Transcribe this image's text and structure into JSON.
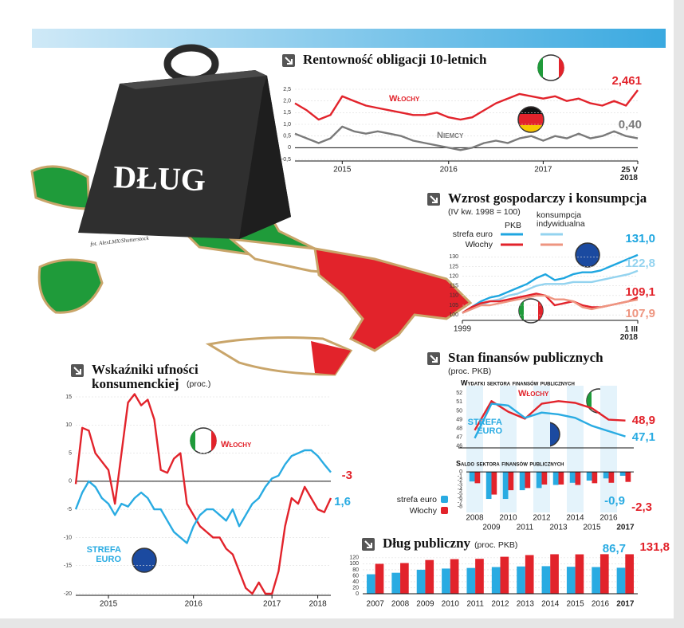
{
  "illustration": {
    "label": "DŁUG",
    "credit": "fot. AlexLMX/Shutterstock"
  },
  "chart_data": [
    {
      "type": "line",
      "title": "Rentowność obligacji 10-letnich",
      "grid": true,
      "categories": [
        null,
        null,
        null,
        null,
        "2015",
        null,
        null,
        null,
        null,
        null,
        null,
        null,
        null,
        "2016",
        null,
        null,
        null,
        null,
        null,
        null,
        null,
        "2017",
        null,
        null,
        null,
        null,
        null,
        null,
        null,
        "25 V 2018"
      ],
      "ylim": [
        -0.5,
        2.5
      ],
      "yticks": [
        {
          "value": 2.5,
          "label": "2,5"
        },
        {
          "value": 2.0,
          "label": "2,0"
        },
        {
          "value": 1.5,
          "label": "1,5"
        },
        {
          "value": 1.0,
          "label": "1,0"
        },
        {
          "value": 0.5,
          "label": "0,5"
        },
        0,
        {
          "value": -0.5,
          "label": "-0,5"
        }
      ],
      "series": [
        {
          "name": "Włochy",
          "color": "#e2232b",
          "values": [
            1.9,
            1.6,
            1.2,
            1.4,
            2.2,
            2.0,
            1.8,
            1.7,
            1.6,
            1.5,
            1.4,
            1.4,
            1.5,
            1.3,
            1.2,
            1.3,
            1.6,
            1.9,
            2.1,
            2.3,
            2.2,
            2.1,
            2.2,
            2.0,
            2.1,
            1.9,
            1.8,
            2.0,
            1.8,
            2.461
          ],
          "value_labels": [
            null,
            null,
            null,
            null,
            null,
            null,
            null,
            null,
            null,
            null,
            null,
            null,
            null,
            null,
            null,
            null,
            null,
            null,
            null,
            null,
            null,
            null,
            null,
            null,
            null,
            null,
            null,
            null,
            null,
            "2,461"
          ]
        },
        {
          "name": "Niemcy",
          "color": "#7a7a7a",
          "values": [
            0.6,
            0.4,
            0.2,
            0.4,
            0.9,
            0.7,
            0.6,
            0.7,
            0.6,
            0.5,
            0.3,
            0.2,
            0.1,
            0.0,
            -0.1,
            0.0,
            0.2,
            0.3,
            0.2,
            0.4,
            0.5,
            0.3,
            0.5,
            0.4,
            0.6,
            0.4,
            0.5,
            0.7,
            0.5,
            0.4
          ],
          "value_labels": [
            null,
            null,
            null,
            null,
            null,
            null,
            null,
            null,
            null,
            null,
            null,
            null,
            null,
            null,
            null,
            null,
            null,
            null,
            null,
            null,
            null,
            null,
            null,
            null,
            null,
            null,
            null,
            null,
            null,
            "0,40"
          ]
        }
      ]
    },
    {
      "type": "line",
      "title": "Wzrost gospodarczy i konsumpcja",
      "subtitle": "(IV kw. 1998 = 100)",
      "grid": true,
      "legend_rows": [
        "strefa euro",
        "Włochy"
      ],
      "legend_columns": [
        "PKB",
        "konsumpcja indywidualna"
      ],
      "categories": [
        "1999",
        null,
        null,
        null,
        null,
        null,
        null,
        null,
        null,
        null,
        null,
        null,
        null,
        null,
        null,
        null,
        null,
        null,
        null,
        "1 III 2018"
      ],
      "ylim": [
        98,
        133
      ],
      "yticks": [
        100,
        105,
        110,
        115,
        120,
        125,
        130
      ],
      "series": [
        {
          "color": "#1ea6e0",
          "values": [
            101,
            104,
            107,
            109,
            110,
            112,
            114,
            116,
            119,
            121,
            118,
            119,
            121,
            122,
            122,
            123,
            125,
            127,
            129,
            131.0
          ],
          "value_labels": [
            null,
            null,
            null,
            null,
            null,
            null,
            null,
            null,
            null,
            null,
            null,
            null,
            null,
            null,
            null,
            null,
            null,
            null,
            null,
            "131,0"
          ]
        },
        {
          "color": "#93d3ef",
          "values": [
            101,
            103,
            105,
            107,
            108,
            110,
            111,
            113,
            115,
            116,
            116,
            116,
            117,
            117,
            117,
            118,
            119,
            120,
            121,
            122.8
          ],
          "value_labels": [
            null,
            null,
            null,
            null,
            null,
            null,
            null,
            null,
            null,
            null,
            null,
            null,
            null,
            null,
            null,
            null,
            null,
            null,
            null,
            "122,8"
          ]
        },
        {
          "color": "#e2232b",
          "values": [
            101,
            104,
            106,
            107,
            107,
            108,
            109,
            110,
            111,
            110,
            105,
            106,
            107,
            105,
            104,
            104,
            105,
            106,
            107,
            109.1
          ],
          "value_labels": [
            null,
            null,
            null,
            null,
            null,
            null,
            null,
            null,
            null,
            null,
            null,
            null,
            null,
            null,
            null,
            null,
            null,
            null,
            null,
            "109,1"
          ]
        },
        {
          "color": "#ee9580",
          "values": [
            101,
            103,
            105,
            105,
            106,
            107,
            108,
            109,
            110,
            110,
            108,
            108,
            107,
            104,
            103,
            104,
            105,
            106,
            107,
            107.9
          ],
          "value_labels": [
            null,
            null,
            null,
            null,
            null,
            null,
            null,
            null,
            null,
            null,
            null,
            null,
            null,
            null,
            null,
            null,
            null,
            null,
            null,
            "107,9"
          ]
        }
      ]
    },
    {
      "type": "line",
      "title": "Wskaźniki ufności konsumenckiej",
      "subtitle": "(proc.)",
      "grid": true,
      "categories": [
        null,
        null,
        null,
        null,
        null,
        "2015",
        null,
        null,
        null,
        null,
        null,
        null,
        null,
        null,
        null,
        null,
        null,
        null,
        "2016",
        null,
        null,
        null,
        null,
        null,
        null,
        null,
        null,
        null,
        null,
        null,
        "2017",
        null,
        null,
        null,
        null,
        null,
        null,
        "2018",
        null,
        null
      ],
      "ylim": [
        -20,
        15
      ],
      "yticks": [
        15,
        10,
        5,
        0,
        -5,
        -10,
        -15,
        -20
      ],
      "series": [
        {
          "name": "Włochy",
          "color": "#e2232b",
          "values": [
            -0.5,
            9.5,
            9,
            5,
            3.5,
            2,
            -4,
            5,
            14,
            15.5,
            13.5,
            14.5,
            11,
            2,
            1.5,
            4,
            5,
            -4,
            -6,
            -8,
            -9,
            -10,
            -10,
            -12,
            -13,
            -16,
            -19,
            -20,
            -18,
            -20,
            -20,
            -16,
            -8,
            -3,
            -4,
            -1,
            -3,
            -5,
            -5.5,
            -3
          ],
          "value_labels": [
            null,
            null,
            null,
            null,
            null,
            null,
            null,
            null,
            null,
            null,
            null,
            null,
            null,
            null,
            null,
            null,
            null,
            null,
            null,
            null,
            null,
            null,
            null,
            null,
            null,
            null,
            null,
            null,
            null,
            null,
            null,
            null,
            null,
            null,
            null,
            null,
            null,
            null,
            null,
            "-3"
          ]
        },
        {
          "name": "STREFA EURO",
          "color": "#29abe2",
          "values": [
            -5,
            -2,
            0,
            -1,
            -3,
            -4,
            -6,
            -4,
            -4.5,
            -3,
            -2,
            -3,
            -5,
            -5,
            -7,
            -9,
            -10,
            -11,
            -8,
            -6,
            -5,
            -5,
            -6,
            -7,
            -5,
            -8,
            -6,
            -4,
            -3,
            -1,
            0.5,
            1,
            3,
            4.5,
            5,
            5.5,
            5.5,
            4.5,
            3,
            1.6
          ],
          "value_labels": [
            null,
            null,
            null,
            null,
            null,
            null,
            null,
            null,
            null,
            null,
            null,
            null,
            null,
            null,
            null,
            null,
            null,
            null,
            null,
            null,
            null,
            null,
            null,
            null,
            null,
            null,
            null,
            null,
            null,
            null,
            null,
            null,
            null,
            null,
            null,
            null,
            null,
            null,
            null,
            "1,6"
          ]
        }
      ]
    },
    {
      "type": "combo",
      "title": "Stan finansów publicznych",
      "subtitle": "(proc. PKB)",
      "categories": [
        "2008",
        "2009",
        "2010",
        "2011",
        "2012",
        "2013",
        "2014",
        "2015",
        "2016",
        "2017"
      ],
      "panels": [
        {
          "type": "line",
          "title": "Wydatki sektora finansów publicznych",
          "ylim": [
            45.8,
            52.3
          ],
          "yticks": [
            46,
            47,
            48,
            49,
            50,
            51,
            52
          ],
          "series": [
            {
              "name": "Włochy",
              "color": "#e2232b",
              "values": [
                47.8,
                51.1,
                49.9,
                49.1,
                50.8,
                51.1,
                50.9,
                50.3,
                49.0,
                48.9
              ],
              "value_labels": [
                null,
                null,
                null,
                null,
                null,
                null,
                null,
                null,
                null,
                "48,9"
              ]
            },
            {
              "name": "STREFA EURO",
              "color": "#29abe2",
              "values": [
                46.9,
                50.8,
                50.6,
                49.2,
                49.8,
                49.6,
                49.2,
                48.3,
                47.7,
                47.1
              ],
              "value_labels": [
                null,
                null,
                null,
                null,
                null,
                null,
                null,
                null,
                null,
                "47,1"
              ]
            }
          ]
        },
        {
          "type": "bar",
          "title": "Saldo sektora finansów publicznych",
          "ylim": [
            -8.2,
            0.2
          ],
          "yticks": [
            0,
            -1,
            -2,
            -3,
            -4,
            -5,
            -6,
            -7,
            -8
          ],
          "series": [
            {
              "name": "strefa euro",
              "color": "#29abe2",
              "values": [
                -2.2,
                -6.2,
                -6.2,
                -4.2,
                -3.7,
                -3.0,
                -2.5,
                -2.0,
                -1.5,
                -0.9
              ],
              "value_labels": [
                null,
                null,
                null,
                null,
                null,
                null,
                null,
                null,
                null,
                "-0,9"
              ]
            },
            {
              "name": "Włochy",
              "color": "#e2232b",
              "values": [
                -2.6,
                -5.2,
                -4.2,
                -3.7,
                -2.9,
                -2.9,
                -3.0,
                -2.6,
                -2.5,
                -2.3
              ],
              "value_labels": [
                null,
                null,
                null,
                null,
                null,
                null,
                null,
                null,
                null,
                "-2,3"
              ]
            }
          ]
        }
      ]
    },
    {
      "type": "bar",
      "title": "Dług publiczny",
      "subtitle": "(proc. PKB)",
      "grid": true,
      "categories": [
        "2007",
        "2008",
        "2009",
        "2010",
        "2011",
        "2012",
        "2013",
        "2014",
        "2015",
        "2016",
        "2017"
      ],
      "ylim": [
        0,
        125
      ],
      "yticks": [
        0,
        20,
        40,
        60,
        80,
        100,
        120
      ],
      "series": [
        {
          "color": "#29abe2",
          "values": [
            65,
            70,
            80,
            84,
            86,
            89,
            91,
            92,
            90,
            89,
            86.7
          ],
          "value_labels": [
            null,
            null,
            null,
            null,
            null,
            null,
            null,
            null,
            null,
            null,
            "86,7"
          ]
        },
        {
          "color": "#e2232b",
          "values": [
            99.8,
            102.4,
            112.5,
            115.4,
            116.5,
            123.4,
            129.0,
            131.8,
            131.5,
            132.0,
            131.8
          ],
          "value_labels": [
            null,
            null,
            null,
            null,
            null,
            null,
            null,
            null,
            null,
            null,
            "131,8"
          ]
        }
      ]
    }
  ]
}
